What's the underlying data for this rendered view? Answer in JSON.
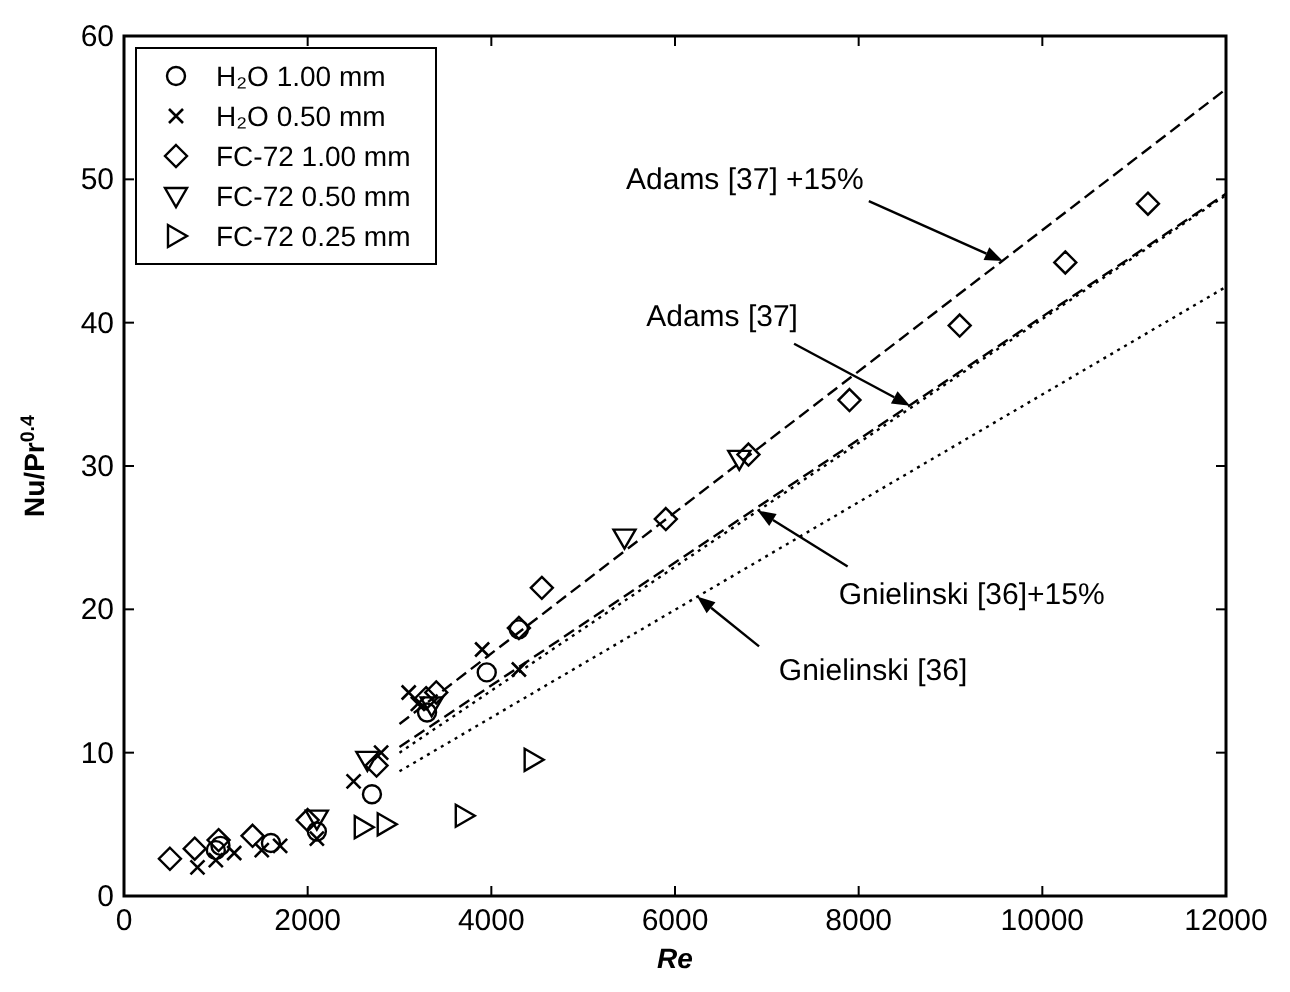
{
  "chart_data": {
    "type": "scatter",
    "xlabel": "Re",
    "ylabel": "Nu/Pr$^{0.4}$",
    "xlim": [
      0,
      12000
    ],
    "ylim": [
      0,
      60
    ],
    "xticks": [
      0,
      2000,
      4000,
      6000,
      8000,
      10000,
      12000
    ],
    "yticks": [
      0,
      10,
      20,
      30,
      40,
      50,
      60
    ],
    "grid": false,
    "legend": "top left",
    "series": [
      {
        "name": "H₂O 1.00 mm",
        "type": "scatter",
        "marker": "circle",
        "color": "#000000",
        "x": [
          1000,
          1050,
          1600,
          2100,
          2700,
          3300,
          3950,
          4300
        ],
        "values": [
          3.2,
          3.5,
          3.7,
          4.5,
          7.1,
          12.8,
          15.6,
          18.6
        ]
      },
      {
        "name": "H₂O 0.50 mm",
        "type": "scatter",
        "marker": "cross",
        "color": "#000000",
        "x": [
          800,
          1000,
          1200,
          1500,
          1700,
          2100,
          2500,
          2800,
          3100,
          3200,
          3900,
          4300
        ],
        "values": [
          2.0,
          2.5,
          3.0,
          3.2,
          3.5,
          4.0,
          8.0,
          10.0,
          14.2,
          13.4,
          17.2,
          15.8
        ]
      },
      {
        "name": "FC-72 1.00 mm",
        "type": "scatter",
        "marker": "diamond",
        "color": "#000000",
        "x": [
          500,
          770,
          1030,
          1400,
          2000,
          2750,
          3290,
          3400,
          4300,
          4550,
          5900,
          6800,
          7900,
          9100,
          10250,
          11150
        ],
        "values": [
          2.6,
          3.3,
          3.9,
          4.2,
          5.3,
          9.1,
          13.8,
          14.2,
          18.7,
          21.5,
          26.3,
          30.8,
          34.6,
          39.8,
          44.2,
          48.3
        ]
      },
      {
        "name": "FC-72 0.50 mm",
        "type": "scatter",
        "marker": "triangle-down",
        "color": "#000000",
        "x": [
          2100,
          2650,
          3350,
          5450,
          6700
        ],
        "values": [
          5.4,
          9.5,
          13.3,
          25.0,
          30.5
        ]
      },
      {
        "name": "FC-72 0.25 mm",
        "type": "scatter",
        "marker": "triangle-right",
        "color": "#000000",
        "x": [
          2600,
          2850,
          3700,
          4450
        ],
        "values": [
          4.8,
          5.0,
          5.6,
          9.5
        ]
      },
      {
        "type": "line",
        "line_style": "dashed",
        "color": "#000000",
        "x": [
          3000,
          12000
        ],
        "values": [
          12.0,
          56.3
        ]
      },
      {
        "type": "line",
        "line_style": "dashed",
        "color": "#000000",
        "x": [
          3000,
          12000
        ],
        "values": [
          10.4,
          49.0
        ]
      },
      {
        "type": "line",
        "line_style": "dotted",
        "color": "#000000",
        "x": [
          3000,
          12000
        ],
        "values": [
          10.0,
          48.9
        ]
      },
      {
        "type": "line",
        "line_style": "dotted",
        "color": "#000000",
        "x": [
          3000,
          12000
        ],
        "values": [
          8.7,
          42.5
        ]
      }
    ],
    "annotations": [
      {
        "text": "Adams [37] +15%",
        "x": 9570,
        "y": 44.3
      },
      {
        "text": "Adams [37]",
        "x": 8560,
        "y": 34.2
      },
      {
        "text": "Gnielinski [36]+15%",
        "x": 6900,
        "y": 26.9
      },
      {
        "text": "Gnielinski [36]",
        "x": 6240,
        "y": 20.9
      }
    ]
  }
}
